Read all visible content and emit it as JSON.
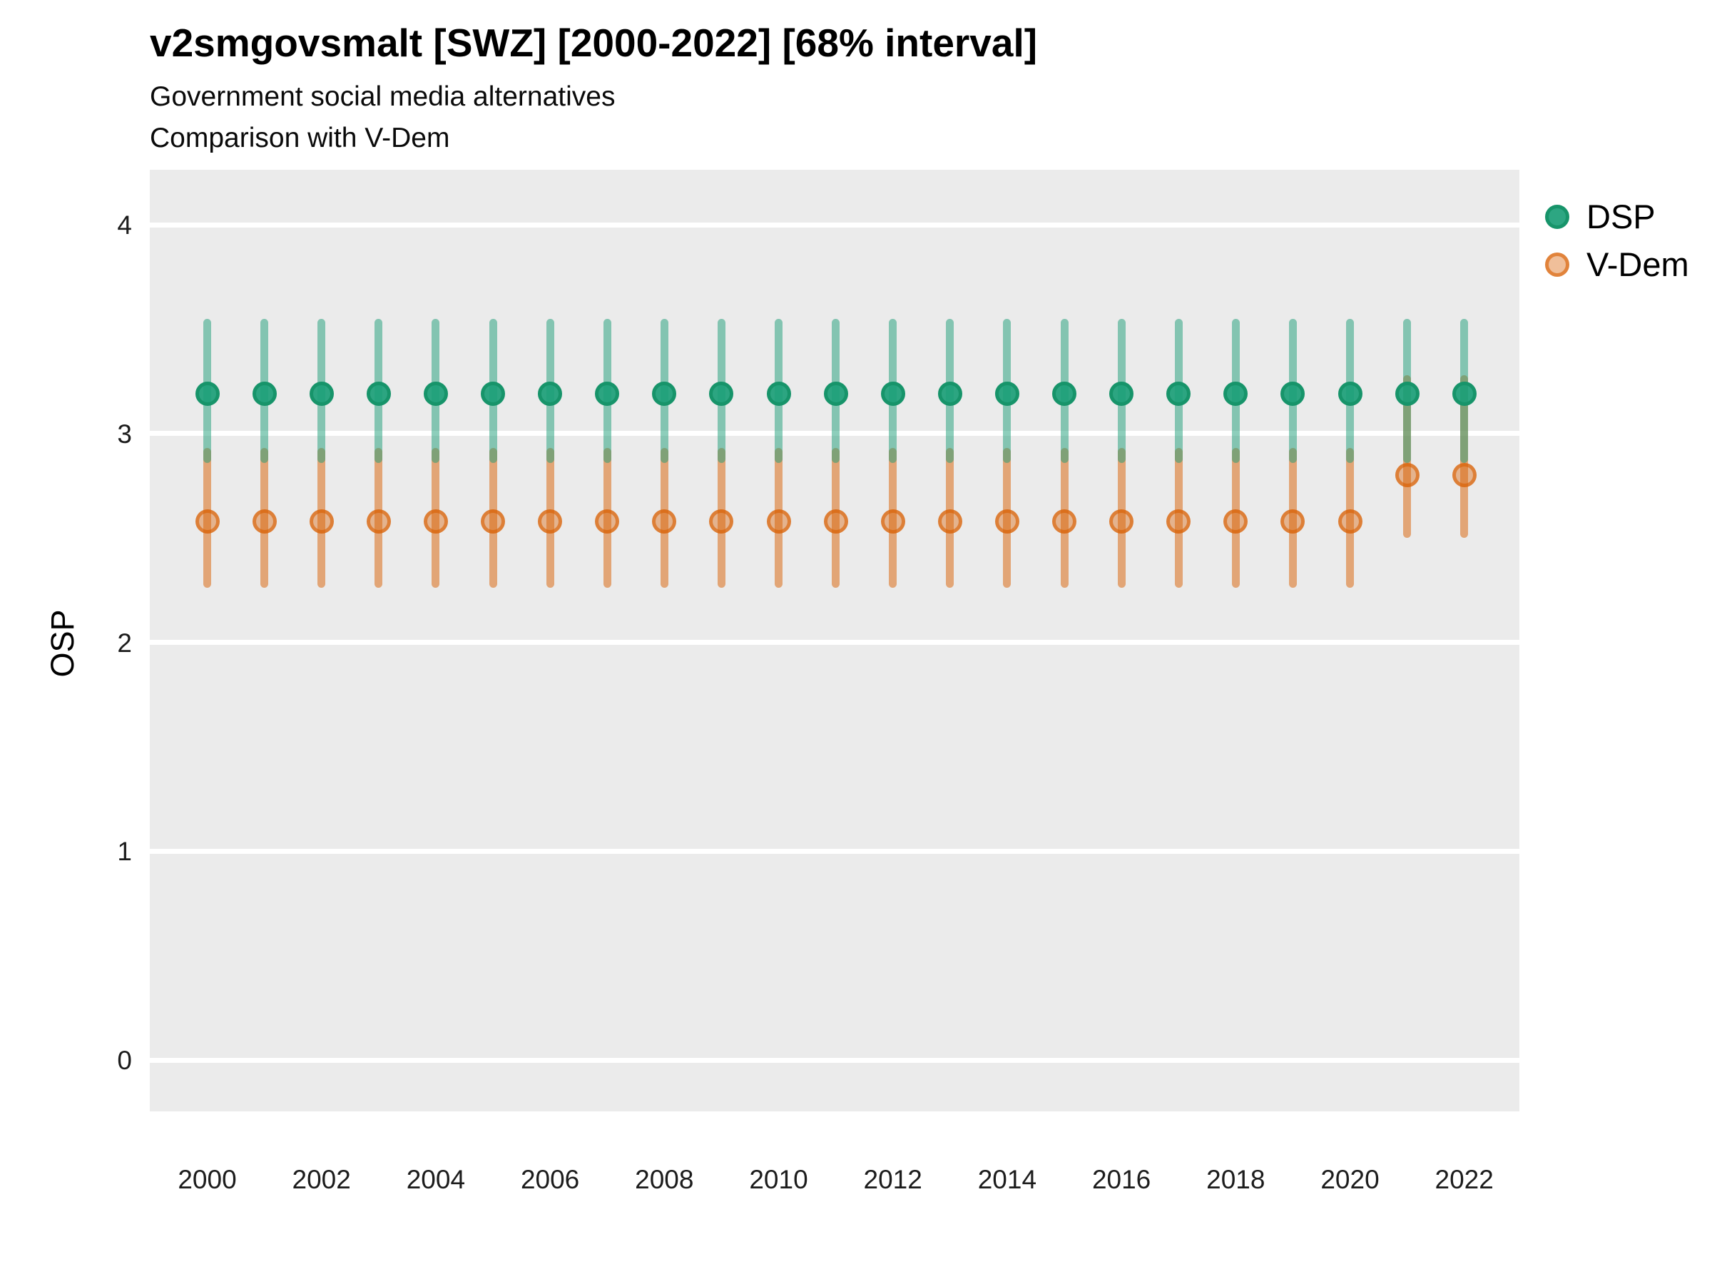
{
  "title": "v2smgovsmalt [SWZ] [2000-2022] [68% interval]",
  "subtitle1": "Government social media alternatives",
  "subtitle2": "Comparison with V-Dem",
  "ylabel": "OSP",
  "interval_label": "68% interval",
  "colors": {
    "dsp": "#1b9e77",
    "vdem": "#d95f02",
    "panel_bg": "#ebebeb",
    "gridline": "#ffffff"
  },
  "legend": [
    {
      "label": "DSP",
      "color": "#1b9e77"
    },
    {
      "label": "V-Dem",
      "color": "#d95f02"
    }
  ],
  "chart_data": {
    "type": "pointrange",
    "title": "v2smgovsmalt [SWZ] [2000-2022] [68% interval]",
    "xlabel": "",
    "ylabel": "OSP",
    "ylim": [
      -0.25,
      4.26
    ],
    "yticks": [
      0,
      1,
      2,
      3,
      4
    ],
    "x_tick_labels": [
      "2000",
      "2002",
      "2004",
      "2006",
      "2008",
      "2010",
      "2012",
      "2014",
      "2016",
      "2018",
      "2020",
      "2022"
    ],
    "grid": "horizontal-only",
    "legend_position": "right",
    "x": [
      2000,
      2001,
      2002,
      2003,
      2004,
      2005,
      2006,
      2007,
      2008,
      2009,
      2010,
      2011,
      2012,
      2013,
      2014,
      2015,
      2016,
      2017,
      2018,
      2019,
      2020,
      2021,
      2022
    ],
    "series": [
      {
        "name": "DSP",
        "color": "#1b9e77",
        "points": [
          {
            "year": 2000,
            "est": 3.19,
            "low": 2.86,
            "high": 3.55
          },
          {
            "year": 2001,
            "est": 3.19,
            "low": 2.86,
            "high": 3.55
          },
          {
            "year": 2002,
            "est": 3.19,
            "low": 2.86,
            "high": 3.55
          },
          {
            "year": 2003,
            "est": 3.19,
            "low": 2.86,
            "high": 3.55
          },
          {
            "year": 2004,
            "est": 3.19,
            "low": 2.86,
            "high": 3.55
          },
          {
            "year": 2005,
            "est": 3.19,
            "low": 2.86,
            "high": 3.55
          },
          {
            "year": 2006,
            "est": 3.19,
            "low": 2.86,
            "high": 3.55
          },
          {
            "year": 2007,
            "est": 3.19,
            "low": 2.86,
            "high": 3.55
          },
          {
            "year": 2008,
            "est": 3.19,
            "low": 2.86,
            "high": 3.55
          },
          {
            "year": 2009,
            "est": 3.19,
            "low": 2.86,
            "high": 3.55
          },
          {
            "year": 2010,
            "est": 3.19,
            "low": 2.86,
            "high": 3.55
          },
          {
            "year": 2011,
            "est": 3.19,
            "low": 2.86,
            "high": 3.55
          },
          {
            "year": 2012,
            "est": 3.19,
            "low": 2.86,
            "high": 3.55
          },
          {
            "year": 2013,
            "est": 3.19,
            "low": 2.86,
            "high": 3.55
          },
          {
            "year": 2014,
            "est": 3.19,
            "low": 2.86,
            "high": 3.55
          },
          {
            "year": 2015,
            "est": 3.19,
            "low": 2.86,
            "high": 3.55
          },
          {
            "year": 2016,
            "est": 3.19,
            "low": 2.86,
            "high": 3.55
          },
          {
            "year": 2017,
            "est": 3.19,
            "low": 2.86,
            "high": 3.55
          },
          {
            "year": 2018,
            "est": 3.19,
            "low": 2.86,
            "high": 3.55
          },
          {
            "year": 2019,
            "est": 3.19,
            "low": 2.86,
            "high": 3.55
          },
          {
            "year": 2020,
            "est": 3.19,
            "low": 2.86,
            "high": 3.55
          },
          {
            "year": 2021,
            "est": 3.19,
            "low": 2.86,
            "high": 3.55
          },
          {
            "year": 2022,
            "est": 3.19,
            "low": 2.86,
            "high": 3.55
          }
        ]
      },
      {
        "name": "V-Dem",
        "color": "#d95f02",
        "points": [
          {
            "year": 2000,
            "est": 2.58,
            "low": 2.26,
            "high": 2.93
          },
          {
            "year": 2001,
            "est": 2.58,
            "low": 2.26,
            "high": 2.93
          },
          {
            "year": 2002,
            "est": 2.58,
            "low": 2.26,
            "high": 2.93
          },
          {
            "year": 2003,
            "est": 2.58,
            "low": 2.26,
            "high": 2.93
          },
          {
            "year": 2004,
            "est": 2.58,
            "low": 2.26,
            "high": 2.93
          },
          {
            "year": 2005,
            "est": 2.58,
            "low": 2.26,
            "high": 2.93
          },
          {
            "year": 2006,
            "est": 2.58,
            "low": 2.26,
            "high": 2.93
          },
          {
            "year": 2007,
            "est": 2.58,
            "low": 2.26,
            "high": 2.93
          },
          {
            "year": 2008,
            "est": 2.58,
            "low": 2.26,
            "high": 2.93
          },
          {
            "year": 2009,
            "est": 2.58,
            "low": 2.26,
            "high": 2.93
          },
          {
            "year": 2010,
            "est": 2.58,
            "low": 2.26,
            "high": 2.93
          },
          {
            "year": 2011,
            "est": 2.58,
            "low": 2.26,
            "high": 2.93
          },
          {
            "year": 2012,
            "est": 2.58,
            "low": 2.26,
            "high": 2.93
          },
          {
            "year": 2013,
            "est": 2.58,
            "low": 2.26,
            "high": 2.93
          },
          {
            "year": 2014,
            "est": 2.58,
            "low": 2.26,
            "high": 2.93
          },
          {
            "year": 2015,
            "est": 2.58,
            "low": 2.26,
            "high": 2.93
          },
          {
            "year": 2016,
            "est": 2.58,
            "low": 2.26,
            "high": 2.93
          },
          {
            "year": 2017,
            "est": 2.58,
            "low": 2.26,
            "high": 2.93
          },
          {
            "year": 2018,
            "est": 2.58,
            "low": 2.26,
            "high": 2.93
          },
          {
            "year": 2019,
            "est": 2.58,
            "low": 2.26,
            "high": 2.93
          },
          {
            "year": 2020,
            "est": 2.58,
            "low": 2.26,
            "high": 2.93
          },
          {
            "year": 2021,
            "est": 2.8,
            "low": 2.5,
            "high": 3.28
          },
          {
            "year": 2022,
            "est": 2.8,
            "low": 2.5,
            "high": 3.28
          }
        ]
      }
    ]
  }
}
